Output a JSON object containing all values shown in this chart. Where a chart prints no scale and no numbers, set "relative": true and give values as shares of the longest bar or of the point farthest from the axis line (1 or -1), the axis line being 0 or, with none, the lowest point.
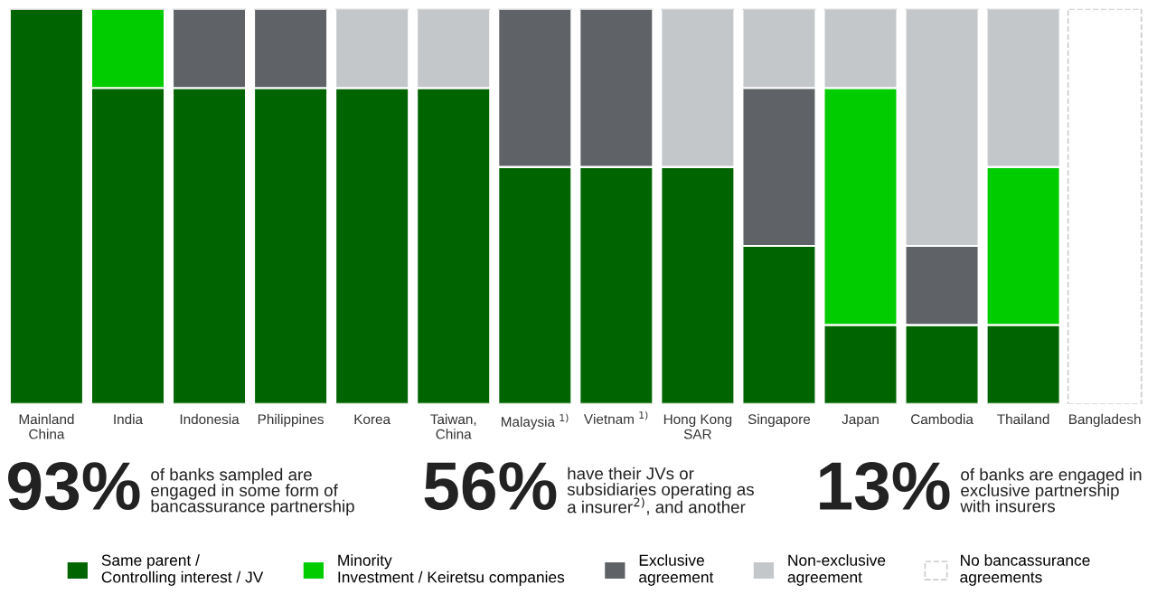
{
  "chart_data": {
    "type": "bar",
    "stacked": true,
    "relative": true,
    "categories": [
      "Mainland\nChina",
      "India",
      "Indonesia",
      "Philippines",
      "Korea",
      "Taiwan,\nChina",
      "Malaysia $^{1)}$",
      "Vietnam $^{1)}$",
      "Hong Kong\nSAR",
      "Singapore",
      "Japan",
      "Cambodia",
      "Thailand",
      "Bangladesh"
    ],
    "series": [
      {
        "name": "Same parent /\nControlling interest / JV",
        "color": "#006400",
        "values": [
          1,
          0.8,
          0.8,
          0.8,
          0.8,
          0.8,
          0.6,
          0.6,
          0.6,
          0.4,
          0.2,
          0.2,
          0.2,
          0
        ]
      },
      {
        "name": "Minority\nInvestment / Keiretsu companies",
        "color": "#00cc00",
        "values": [
          0,
          0.2,
          0,
          0,
          0,
          0,
          0,
          0,
          0,
          0,
          0.6,
          0,
          0.4,
          0
        ]
      },
      {
        "name": "Exclusive\nagreement",
        "color": "#5f6368",
        "values": [
          0,
          0,
          0.2,
          0.2,
          0,
          0,
          0.4,
          0.4,
          0,
          0.4,
          0,
          0.2,
          0,
          0
        ]
      },
      {
        "name": "Non-exclusive\nagreement",
        "color": "#c4c7ca",
        "values": [
          0,
          0,
          0,
          0,
          0.2,
          0.2,
          0,
          0,
          0.4,
          0.2,
          0.2,
          0.6,
          0.4,
          0
        ]
      },
      {
        "name": "No bancassurance\nagreements",
        "color": "#cccccc",
        "line_style": "dashed",
        "values": [
          0,
          0,
          0,
          0,
          0,
          0,
          0,
          0,
          0,
          0,
          0,
          0,
          0,
          1
        ]
      }
    ],
    "annotations": [
      "93%",
      "of banks sampled are\nengaged in some form of\nbancassurance partnership",
      "56%",
      "have their JVs or\nsubsidiaries operating as\na insurer$^{2)}$, and another",
      "13%",
      "of banks are engaged in\nexclusive partnership\nwith insurers"
    ],
    "legend": "bottom",
    "grid": false
  }
}
